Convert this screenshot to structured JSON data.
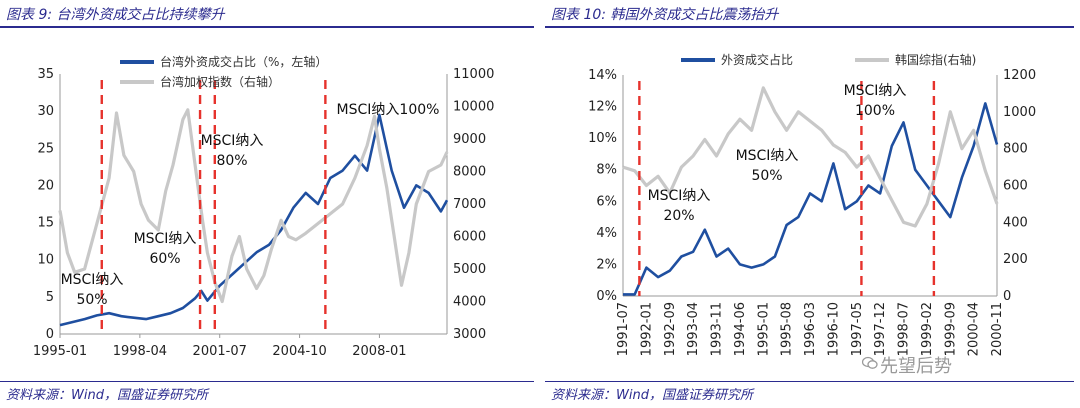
{
  "colors": {
    "series_blue": "#1f4fa0",
    "series_gray": "#c8c8c8",
    "marker_red": "#e6322c",
    "caption_navy": "#2b2b8f"
  },
  "watermark": "先望后势",
  "panels": [
    {
      "caption": "图表 9: 台湾外资成交占比持续攀升",
      "source": "资料来源：Wind，国盛证券研究所"
    },
    {
      "caption": "图表 10: 韩国外资成交占比震荡抬升",
      "source": "资料来源：Wind，国盛证券研究所"
    }
  ],
  "chart_data": [
    {
      "type": "line",
      "title": "",
      "legend": [
        "台湾外资成交占比（%，左轴）",
        "台湾加权指数（右轴）"
      ],
      "legend_position": "top-right",
      "x_ticks": [
        "1995-01",
        "1998-04",
        "2001-07",
        "2004-10",
        "2008-01"
      ],
      "x_tick_months": [
        1995.0,
        1998.25,
        2001.5,
        2004.75,
        2008.0
      ],
      "x_range": [
        1995.0,
        2010.75
      ],
      "y_left": {
        "ticks": [
          "0",
          "5",
          "10",
          "15",
          "20",
          "25",
          "30",
          "35"
        ],
        "range": [
          0,
          35
        ]
      },
      "y_right": {
        "ticks": [
          "3000",
          "4000",
          "5000",
          "6000",
          "7000",
          "8000",
          "9000",
          "10000",
          "11000"
        ],
        "range": [
          3000,
          11000
        ]
      },
      "grid": false,
      "series": [
        {
          "name": "台湾外资成交占比（%，左轴）",
          "axis": "left",
          "x": [
            1995.0,
            1995.5,
            1996.0,
            1996.5,
            1997.0,
            1997.5,
            1998.0,
            1998.5,
            1999.0,
            1999.5,
            2000.0,
            2000.5,
            2000.75,
            2001.0,
            2001.5,
            2002.0,
            2002.5,
            2003.0,
            2003.5,
            2004.0,
            2004.5,
            2005.0,
            2005.5,
            2006.0,
            2006.5,
            2007.0,
            2007.5,
            2008.0,
            2008.5,
            2009.0,
            2009.5,
            2010.0,
            2010.5,
            2010.75
          ],
          "values": [
            1.2,
            1.6,
            2.0,
            2.5,
            2.8,
            2.4,
            2.2,
            2.0,
            2.4,
            2.8,
            3.5,
            4.8,
            5.8,
            4.5,
            6.5,
            8.0,
            9.5,
            11.0,
            12.0,
            14.0,
            17.0,
            19.0,
            17.5,
            21.0,
            22.0,
            24.0,
            22.0,
            29.5,
            22.0,
            17.0,
            20.0,
            19.0,
            16.5,
            18.0
          ]
        },
        {
          "name": "台湾加权指数（右轴）",
          "axis": "right",
          "x": [
            1995.0,
            1995.3,
            1995.6,
            1996.0,
            1996.5,
            1997.0,
            1997.3,
            1997.6,
            1998.0,
            1998.3,
            1998.6,
            1999.0,
            1999.3,
            1999.6,
            2000.0,
            2000.2,
            2000.5,
            2000.8,
            2001.0,
            2001.3,
            2001.6,
            2002.0,
            2002.3,
            2002.6,
            2003.0,
            2003.3,
            2003.6,
            2004.0,
            2004.3,
            2004.6,
            2005.0,
            2005.5,
            2006.0,
            2006.5,
            2007.0,
            2007.5,
            2007.8,
            2008.0,
            2008.3,
            2008.6,
            2008.9,
            2009.2,
            2009.5,
            2010.0,
            2010.5,
            2010.75
          ],
          "values": [
            6800,
            5500,
            4900,
            5000,
            6400,
            7800,
            9800,
            8500,
            8000,
            7000,
            6500,
            6200,
            7400,
            8200,
            9600,
            9900,
            8200,
            6500,
            5500,
            4600,
            4000,
            5400,
            6000,
            5000,
            4400,
            4800,
            5600,
            6500,
            6000,
            5900,
            6100,
            6400,
            6700,
            7000,
            7800,
            8800,
            9700,
            8700,
            7500,
            6000,
            4500,
            5500,
            7000,
            8000,
            8200,
            8600
          ]
        }
      ],
      "annotations": [
        {
          "lines": [
            "MSCI纳入",
            "50%"
          ],
          "x": 1996.9
        },
        {
          "lines": [
            "MSCI纳入",
            "60%"
          ],
          "x": 2000.7
        },
        {
          "lines": [
            "MSCI纳入",
            "80%"
          ],
          "x": 2001.4
        },
        {
          "lines": [
            "MSCI纳入100%"
          ],
          "x": 2005.9
        }
      ],
      "markers_x": [
        1996.7,
        2000.7,
        2001.3,
        2005.8
      ]
    },
    {
      "type": "line",
      "title": "",
      "legend": [
        "外资成交占比",
        "韩国综指(右轴)"
      ],
      "legend_position": "top",
      "x_ticks": [
        "1991-07",
        "1992-01",
        "1992-09",
        "1993-04",
        "1993-11",
        "1994-06",
        "1995-01",
        "1995-08",
        "1996-03",
        "1996-10",
        "1997-05",
        "1997-12",
        "1998-07",
        "1999-02",
        "1999-09",
        "2000-04",
        "2000-11"
      ],
      "x_range": [
        0,
        16
      ],
      "y_left": {
        "ticks": [
          "0%",
          "2%",
          "4%",
          "6%",
          "8%",
          "10%",
          "12%",
          "14%"
        ],
        "range": [
          0,
          14
        ]
      },
      "y_right": {
        "ticks": [
          "0",
          "200",
          "400",
          "600",
          "800",
          "1000",
          "1200"
        ],
        "range": [
          0,
          1200
        ]
      },
      "grid": false,
      "series": [
        {
          "name": "外资成交占比",
          "axis": "left",
          "x": [
            0,
            0.5,
            1,
            1.5,
            2,
            2.5,
            3,
            3.5,
            4,
            4.5,
            5,
            5.5,
            6,
            6.5,
            7,
            7.5,
            8,
            8.5,
            9,
            9.5,
            10,
            10.5,
            11,
            11.5,
            12,
            12.5,
            13,
            13.5,
            14,
            14.5,
            15,
            15.5,
            16
          ],
          "values": [
            0.1,
            0.1,
            1.8,
            1.2,
            1.6,
            2.5,
            2.8,
            4.2,
            2.5,
            3.0,
            2.0,
            1.8,
            2.0,
            2.5,
            4.5,
            5.0,
            6.5,
            6.0,
            8.4,
            5.5,
            6.0,
            7.0,
            6.5,
            9.5,
            11.0,
            8.0,
            7.0,
            6.0,
            5.0,
            7.5,
            9.5,
            12.2,
            9.6
          ]
        },
        {
          "name": "韩国综指(右轴)",
          "axis": "right",
          "x": [
            0,
            0.5,
            1,
            1.5,
            2,
            2.5,
            3,
            3.5,
            4,
            4.5,
            5,
            5.5,
            6,
            6.5,
            7,
            7.5,
            8,
            8.5,
            9,
            9.5,
            10,
            10.5,
            11,
            11.5,
            12,
            12.5,
            13,
            13.5,
            14,
            14.5,
            15,
            15.5,
            16
          ],
          "values": [
            700,
            680,
            600,
            650,
            560,
            700,
            760,
            850,
            760,
            880,
            960,
            900,
            1130,
            1000,
            900,
            1000,
            950,
            900,
            820,
            780,
            700,
            760,
            640,
            520,
            400,
            380,
            500,
            720,
            1000,
            800,
            900,
            680,
            500
          ]
        }
      ],
      "annotations": [
        {
          "lines": [
            "MSCI纳入",
            "20%"
          ],
          "x": 1.8
        },
        {
          "lines": [
            "MSCI纳入",
            "50%"
          ],
          "x": 7.6
        },
        {
          "lines": [
            "MSCI纳入",
            "100%"
          ],
          "x": 11.7
        }
      ],
      "markers_x": [
        0.7,
        10.2,
        13.3
      ]
    }
  ]
}
